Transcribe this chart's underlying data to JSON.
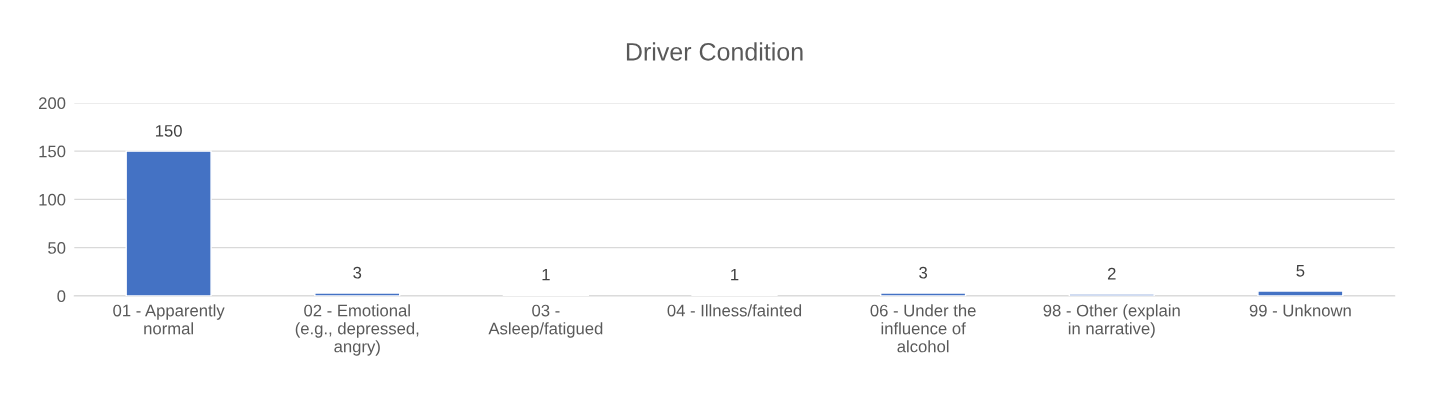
{
  "chart_data": {
    "type": "bar",
    "title": "Driver Condition",
    "categories": [
      "01 - Apparently\nnormal",
      "02 - Emotional\n(e.g., depressed,\nangry)",
      "03 -\nAsleep/fatigued",
      "04 - Illness/fainted",
      "06 - Under the\ninfluence of\nalcohol",
      "98 - Other (explain\nin narrative)",
      "99 - Unknown"
    ],
    "values": [
      150,
      3,
      1,
      1,
      3,
      2,
      5
    ],
    "color": "#4472c4",
    "ylim": [
      0,
      200
    ],
    "yticks": [
      0,
      50,
      100,
      150,
      200
    ],
    "grid": "y",
    "data_labels": true
  }
}
